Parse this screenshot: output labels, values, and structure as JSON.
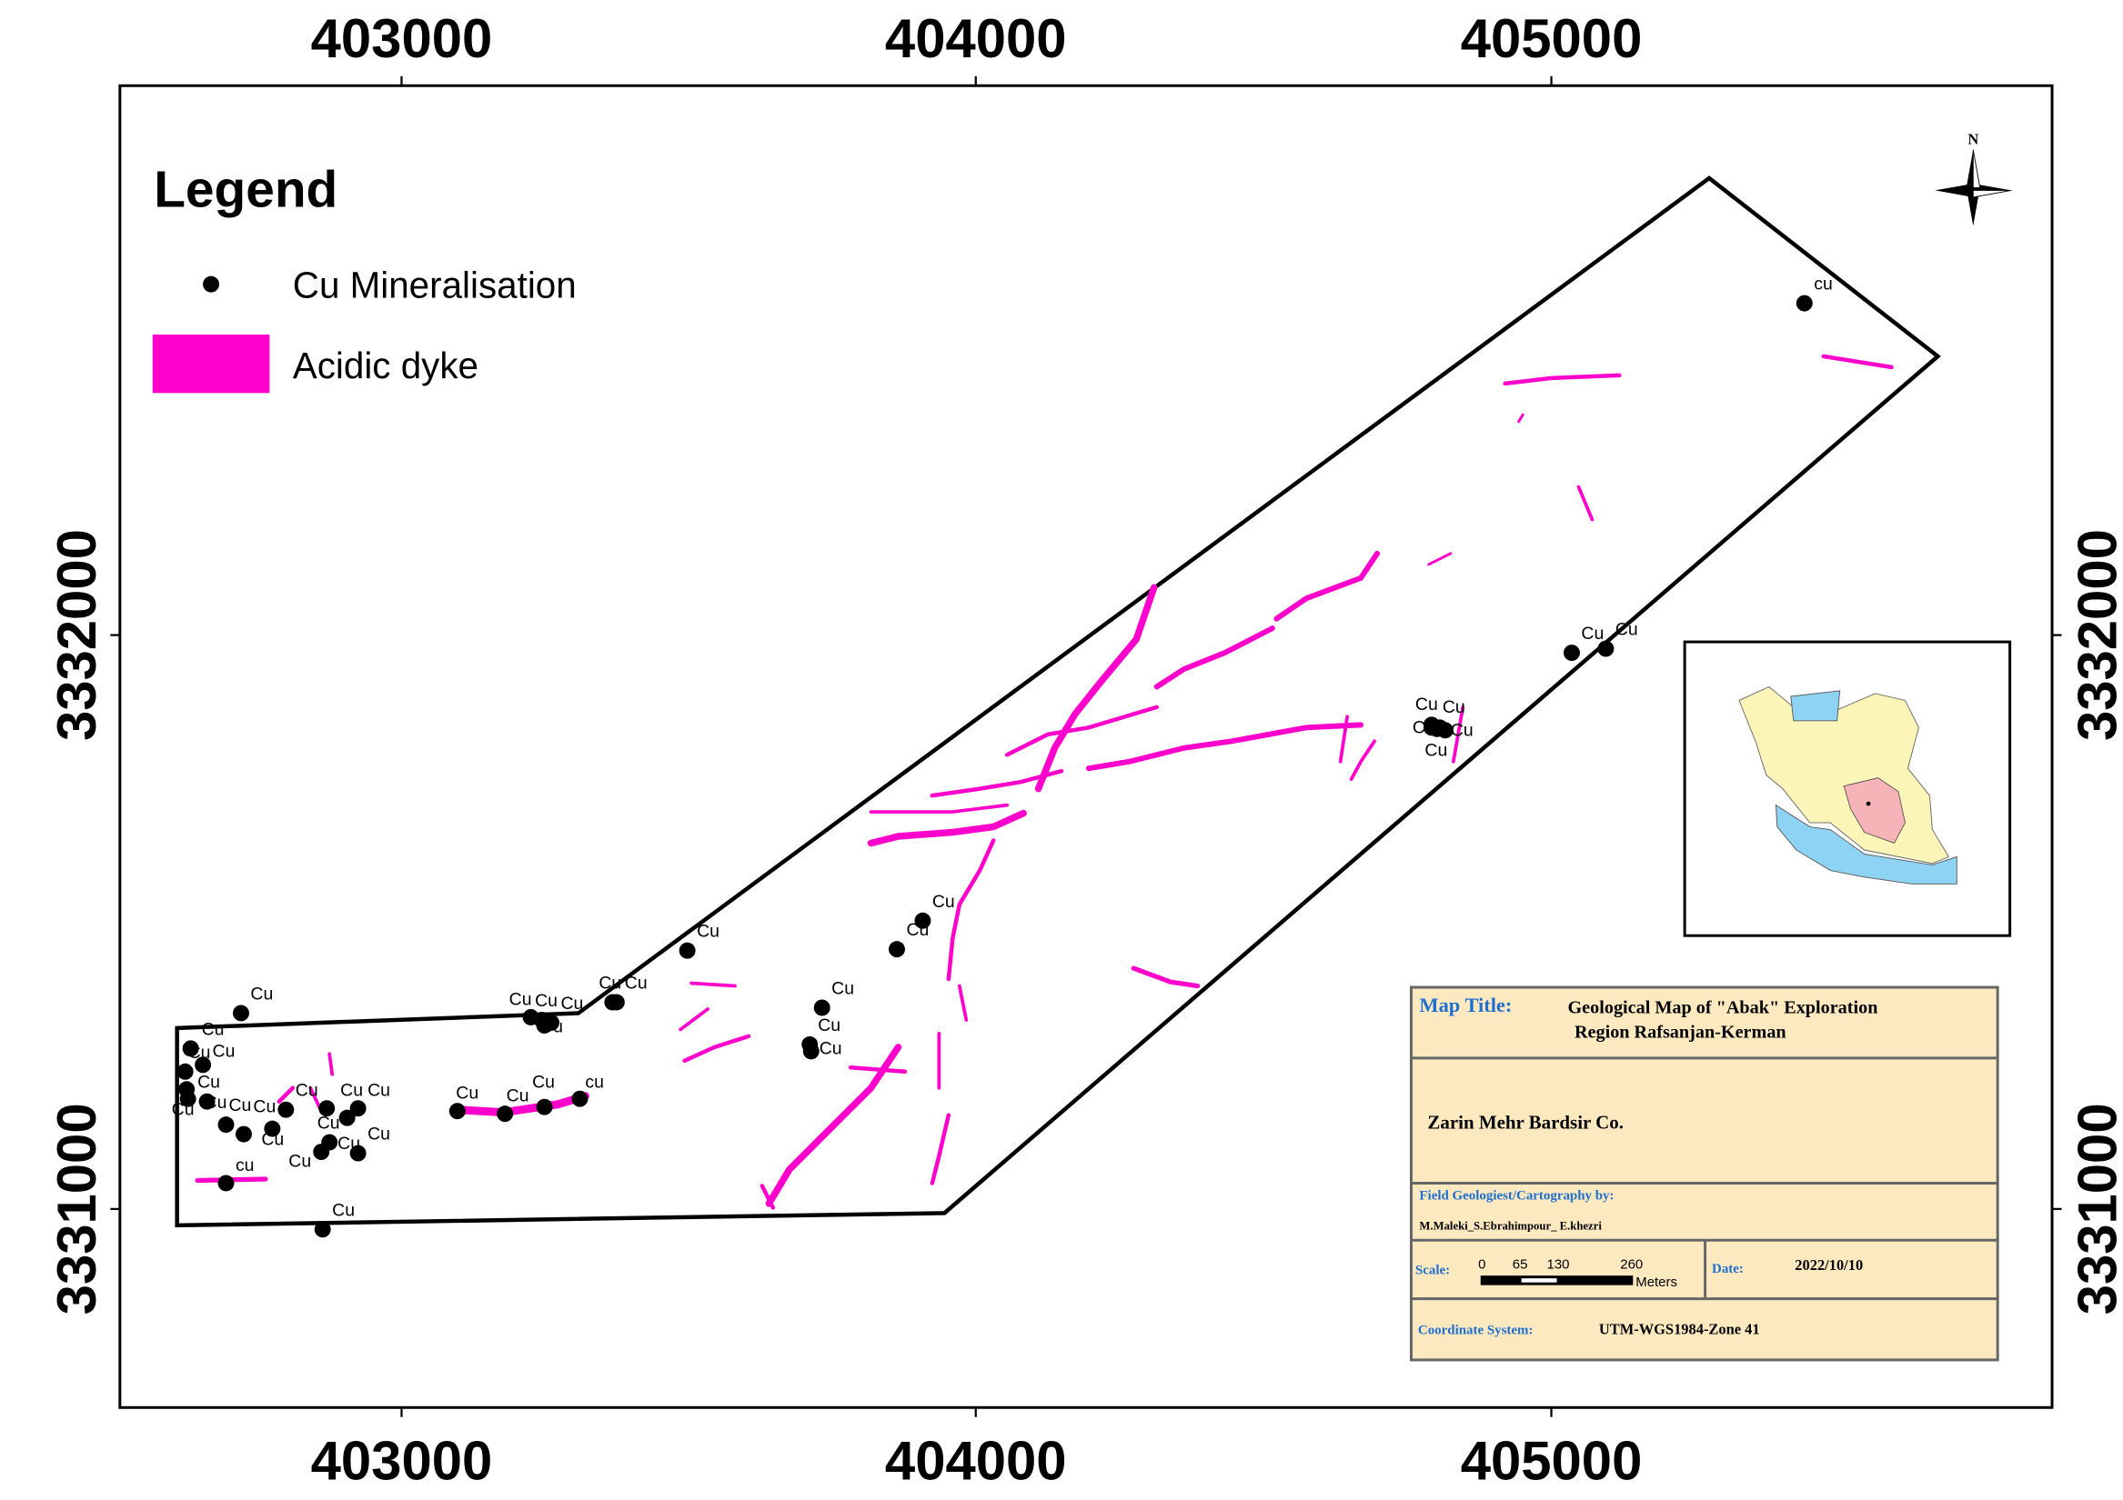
{
  "axes": {
    "x_ticks": [
      "403000",
      "404000",
      "405000"
    ],
    "y_ticks": [
      "3332000",
      "3331000"
    ]
  },
  "legend": {
    "title": "Legend",
    "items": [
      {
        "label": "Cu Mineralisation",
        "symbol": "black-dot"
      },
      {
        "label": "Acidic dyke",
        "symbol": "magenta-patch"
      }
    ]
  },
  "north_arrow": {
    "label": "N"
  },
  "title_block": {
    "map_title_label": "Map Title:",
    "map_title_line1": "Geological Map of \"Abak\" Exploration",
    "map_title_line2": "Region Rafsanjan-Kerman",
    "company": "Zarin Mehr Bardsir Co.",
    "authors_label": "Field Geologiest/Cartography by:",
    "authors": "M.Maleki_S.Ebrahimpour_ E.khezri",
    "scale_label": "Scale:",
    "scale_ticks": [
      "0",
      "65",
      "130",
      "260"
    ],
    "scale_unit": "Meters",
    "date_label": "Date:",
    "date": "2022/10/10",
    "coord_label": "Coordinate System:",
    "coord": "UTM-WGS1984-Zone 41"
  },
  "mineral_labels": [
    "cu",
    "Cu",
    "Cu",
    "Cu",
    "Cu",
    "Cu",
    "Cu",
    "Cu",
    "Cu",
    "Cu",
    "Cu",
    "Cu",
    "Cu",
    "Cu",
    "Cu",
    "Cu",
    "Cu",
    "Cu",
    "Cu",
    "Cu",
    "Cu",
    "Cu",
    "Cu",
    "Cu",
    "Cu",
    "Cu",
    "Cu",
    "Cu",
    "Cu",
    "Cu",
    "Cu",
    "Cu",
    "Cu",
    "Cu",
    "Cu",
    "Cu",
    "Cu",
    "Cu",
    "Cu",
    "Cu",
    "cu",
    "cu"
  ],
  "colors": {
    "dyke": "#ff00cc",
    "title_block_bg": "#fde9c0",
    "label_blue": "#1f6fd0",
    "caspian": "#8fd3f4",
    "kerman": "#f6b3b8",
    "iran": "#fbf5b8"
  }
}
